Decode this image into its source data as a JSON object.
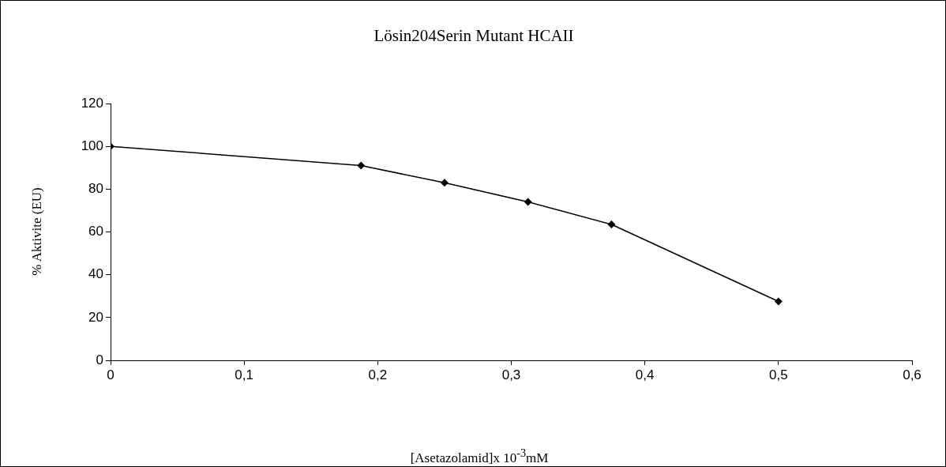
{
  "chart_data": {
    "type": "line",
    "title": "Lösin204Serin Mutant HCAII",
    "xlabel": "[Asetazolamid]x 10$^{-3}$mM",
    "ylabel": "% Aktivite (EU)",
    "x": [
      0,
      0.1875,
      0.25,
      0.3125,
      0.375,
      0.5
    ],
    "series": [
      {
        "color": "#000000",
        "values": [
          100,
          91,
          83,
          74,
          63.5,
          27.5
        ]
      }
    ],
    "xlim": [
      0,
      0.6
    ],
    "xticks": [
      {
        "value": 0,
        "label": "0"
      },
      {
        "value": 0.1,
        "label": "0,1"
      },
      {
        "value": 0.2,
        "label": "0,2"
      },
      {
        "value": 0.3,
        "label": "0,3"
      },
      {
        "value": 0.4,
        "label": "0,4"
      },
      {
        "value": 0.5,
        "label": "0,5"
      },
      {
        "value": 0.6,
        "label": "0,6"
      }
    ],
    "ylim": [
      0,
      120
    ],
    "yticks": [
      0,
      20,
      40,
      60,
      80,
      100,
      120
    ],
    "grid": false,
    "legend": false,
    "marker": "diamond",
    "line_style": "solid"
  }
}
